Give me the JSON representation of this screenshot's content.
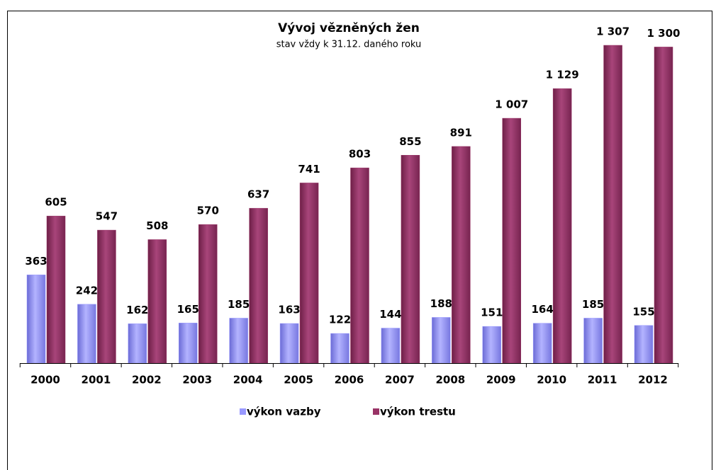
{
  "chart_data": {
    "type": "bar",
    "title": "Vývoj vězněných žen",
    "subtitle": "stav vždy k 31.12. daného roku",
    "categories": [
      "2000",
      "2001",
      "2002",
      "2003",
      "2004",
      "2005",
      "2006",
      "2007",
      "2008",
      "2009",
      "2010",
      "2011",
      "2012"
    ],
    "series": [
      {
        "name": "výkon vazby",
        "color": "#9999ff",
        "values": [
          363,
          242,
          162,
          165,
          185,
          163,
          122,
          144,
          188,
          151,
          164,
          185,
          155
        ]
      },
      {
        "name": "výkon trestu",
        "color": "#993366",
        "values": [
          605,
          547,
          508,
          570,
          637,
          741,
          803,
          855,
          891,
          1007,
          1129,
          1307,
          1300
        ],
        "value_labels": [
          "605",
          "547",
          "508",
          "570",
          "637",
          "741",
          "803",
          "855",
          "891",
          "1 007",
          "1 129",
          "1 307",
          "1 300"
        ]
      }
    ],
    "legend": "bottom"
  }
}
